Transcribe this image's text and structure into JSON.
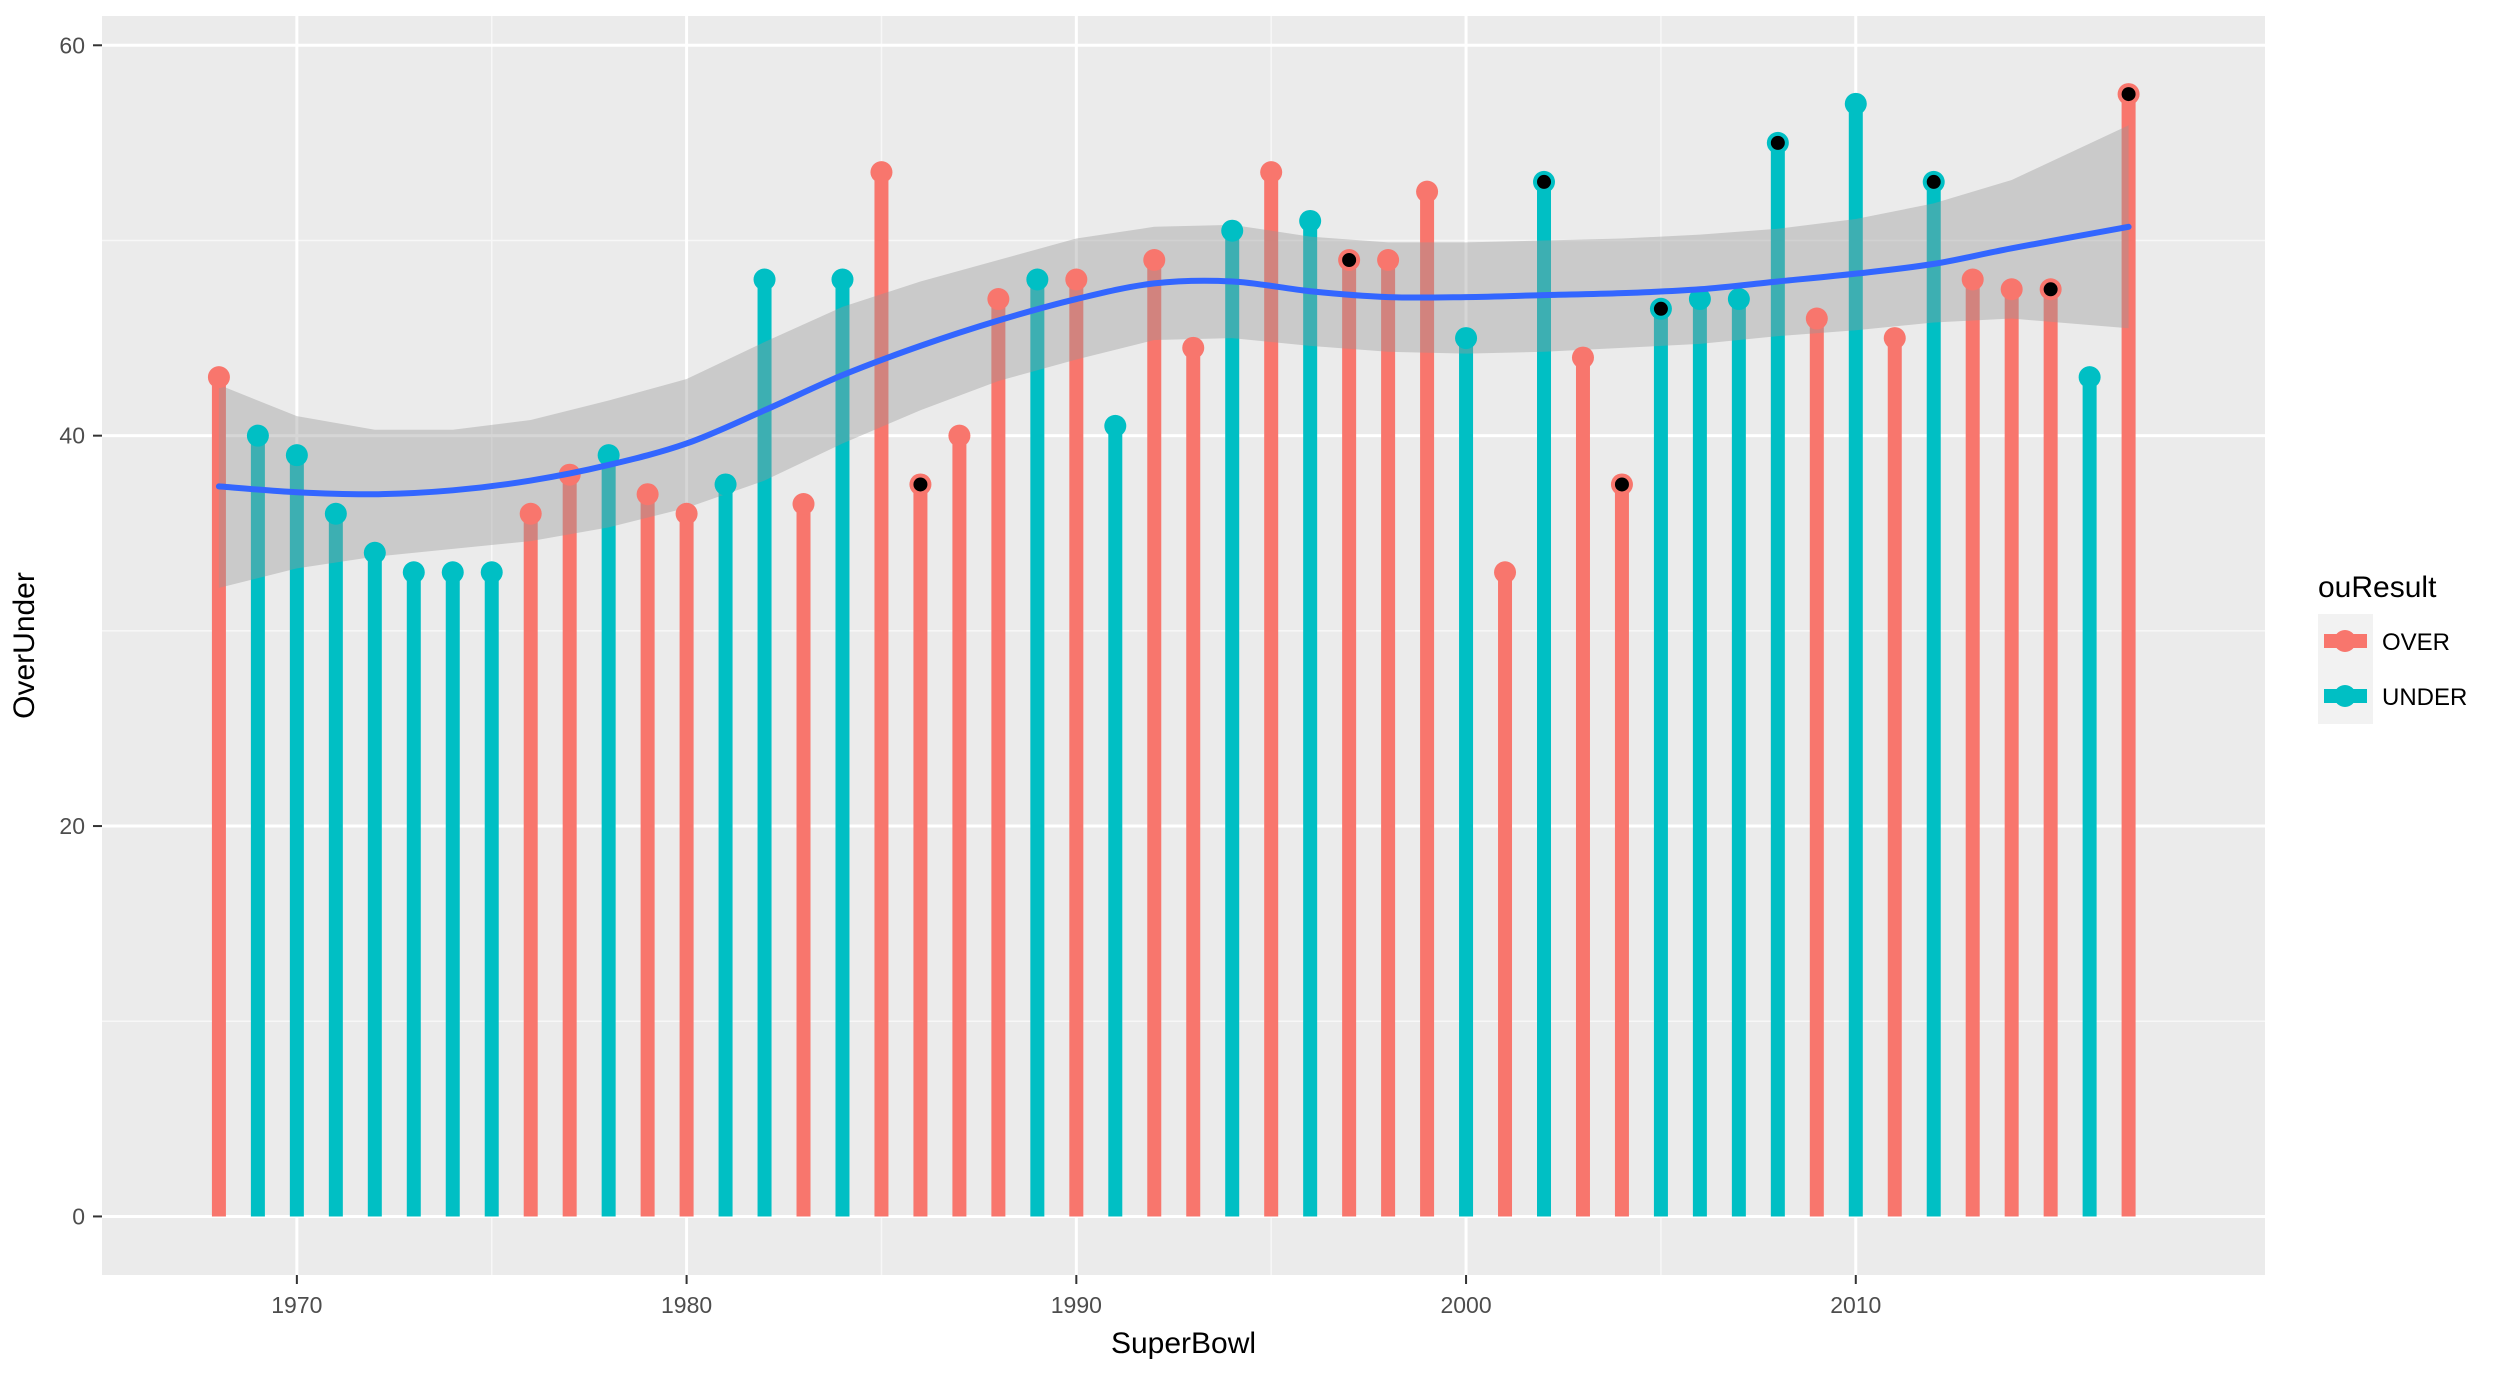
{
  "chart_data": {
    "type": "bar",
    "subtype": "lollipop",
    "xlabel": "SuperBowl",
    "ylabel": "OverUnder",
    "xlim": [
      1965,
      2020.5
    ],
    "ylim": [
      -3,
      61.5
    ],
    "x_ticks": [
      1970,
      1980,
      1990,
      2000,
      2010
    ],
    "x_tick_labels": [
      "1970",
      "1980",
      "1990",
      "2000",
      "2010"
    ],
    "y_ticks": [
      0,
      20,
      40,
      60
    ],
    "y_tick_labels": [
      "0",
      "20",
      "40",
      "60"
    ],
    "grid": true,
    "legend": {
      "title": "ouResult",
      "position": "right",
      "entries": [
        {
          "label": "OVER",
          "color": "#F8766D"
        },
        {
          "label": "UNDER",
          "color": "#00BFC4"
        }
      ]
    },
    "series": [
      {
        "name": "OVER",
        "color": "#F8766D",
        "points": [
          {
            "x": 1968,
            "y": 43
          },
          {
            "x": 1976,
            "y": 36
          },
          {
            "x": 1977,
            "y": 38
          },
          {
            "x": 1979,
            "y": 37
          },
          {
            "x": 1980,
            "y": 36
          },
          {
            "x": 1983,
            "y": 36.5
          },
          {
            "x": 1985,
            "y": 53.5
          },
          {
            "x": 1986,
            "y": 37.5
          },
          {
            "x": 1987,
            "y": 40
          },
          {
            "x": 1988,
            "y": 47
          },
          {
            "x": 1990,
            "y": 48
          },
          {
            "x": 1992,
            "y": 49
          },
          {
            "x": 1993,
            "y": 44.5
          },
          {
            "x": 1995,
            "y": 53.5
          },
          {
            "x": 1997,
            "y": 49
          },
          {
            "x": 1998,
            "y": 49
          },
          {
            "x": 1999,
            "y": 52.5
          },
          {
            "x": 2001,
            "y": 33
          },
          {
            "x": 2003,
            "y": 44
          },
          {
            "x": 2004,
            "y": 37.5
          },
          {
            "x": 2009,
            "y": 46
          },
          {
            "x": 2011,
            "y": 45
          },
          {
            "x": 2013,
            "y": 48
          },
          {
            "x": 2014,
            "y": 47.5
          },
          {
            "x": 2015,
            "y": 47.5
          },
          {
            "x": 2017,
            "y": 57.5
          }
        ]
      },
      {
        "name": "UNDER",
        "color": "#00BFC4",
        "points": [
          {
            "x": 1969,
            "y": 40
          },
          {
            "x": 1970,
            "y": 39
          },
          {
            "x": 1971,
            "y": 36
          },
          {
            "x": 1972,
            "y": 34
          },
          {
            "x": 1973,
            "y": 33
          },
          {
            "x": 1974,
            "y": 33
          },
          {
            "x": 1975,
            "y": 33
          },
          {
            "x": 1978,
            "y": 39
          },
          {
            "x": 1981,
            "y": 37.5
          },
          {
            "x": 1982,
            "y": 48
          },
          {
            "x": 1984,
            "y": 48
          },
          {
            "x": 1989,
            "y": 48
          },
          {
            "x": 1991,
            "y": 40.5
          },
          {
            "x": 1994,
            "y": 50.5
          },
          {
            "x": 1996,
            "y": 51
          },
          {
            "x": 2000,
            "y": 45
          },
          {
            "x": 2002,
            "y": 53
          },
          {
            "x": 2005,
            "y": 46.5
          },
          {
            "x": 2006,
            "y": 47
          },
          {
            "x": 2007,
            "y": 47
          },
          {
            "x": 2008,
            "y": 55
          },
          {
            "x": 2010,
            "y": 57
          },
          {
            "x": 2012,
            "y": 53
          },
          {
            "x": 2016,
            "y": 43
          }
        ]
      }
    ],
    "marked_points": [
      {
        "x": 1986,
        "y": 37.5
      },
      {
        "x": 1997,
        "y": 49
      },
      {
        "x": 2002,
        "y": 53
      },
      {
        "x": 2004,
        "y": 37.5
      },
      {
        "x": 2005,
        "y": 46.5
      },
      {
        "x": 2008,
        "y": 55
      },
      {
        "x": 2012,
        "y": 53
      },
      {
        "x": 2015,
        "y": 47.5
      },
      {
        "x": 2017,
        "y": 57.5
      }
    ],
    "smooth": {
      "color": "#3366FF",
      "band_color": "#999999",
      "points": [
        {
          "x": 1968,
          "y": 37.4,
          "lower": 32.2,
          "upper": 42.6
        },
        {
          "x": 1970,
          "y": 37.1,
          "lower": 33.2,
          "upper": 41.0
        },
        {
          "x": 1972,
          "y": 37.0,
          "lower": 33.8,
          "upper": 40.3
        },
        {
          "x": 1974,
          "y": 37.2,
          "lower": 34.2,
          "upper": 40.3
        },
        {
          "x": 1976,
          "y": 37.7,
          "lower": 34.6,
          "upper": 40.8
        },
        {
          "x": 1978,
          "y": 38.5,
          "lower": 35.3,
          "upper": 41.8
        },
        {
          "x": 1980,
          "y": 39.6,
          "lower": 36.3,
          "upper": 42.9
        },
        {
          "x": 1982,
          "y": 41.3,
          "lower": 37.7,
          "upper": 44.8
        },
        {
          "x": 1984,
          "y": 43.1,
          "lower": 39.6,
          "upper": 46.6
        },
        {
          "x": 1986,
          "y": 44.6,
          "lower": 41.3,
          "upper": 47.9
        },
        {
          "x": 1988,
          "y": 45.9,
          "lower": 42.8,
          "upper": 49.0
        },
        {
          "x": 1990,
          "y": 47.0,
          "lower": 43.9,
          "upper": 50.1
        },
        {
          "x": 1992,
          "y": 47.8,
          "lower": 44.9,
          "upper": 50.7
        },
        {
          "x": 1994,
          "y": 47.9,
          "lower": 45.0,
          "upper": 50.8
        },
        {
          "x": 1996,
          "y": 47.4,
          "lower": 44.6,
          "upper": 50.2
        },
        {
          "x": 1998,
          "y": 47.1,
          "lower": 44.3,
          "upper": 49.9
        },
        {
          "x": 2000,
          "y": 47.1,
          "lower": 44.2,
          "upper": 49.9
        },
        {
          "x": 2002,
          "y": 47.2,
          "lower": 44.3,
          "upper": 50.0
        },
        {
          "x": 2004,
          "y": 47.3,
          "lower": 44.5,
          "upper": 50.1
        },
        {
          "x": 2006,
          "y": 47.5,
          "lower": 44.7,
          "upper": 50.3
        },
        {
          "x": 2008,
          "y": 47.9,
          "lower": 45.1,
          "upper": 50.6
        },
        {
          "x": 2010,
          "y": 48.3,
          "lower": 45.4,
          "upper": 51.1
        },
        {
          "x": 2012,
          "y": 48.8,
          "lower": 45.8,
          "upper": 51.9
        },
        {
          "x": 2014,
          "y": 49.6,
          "lower": 46.0,
          "upper": 53.1
        },
        {
          "x": 2017,
          "y": 50.7,
          "lower": 45.5,
          "upper": 55.9
        }
      ]
    }
  }
}
